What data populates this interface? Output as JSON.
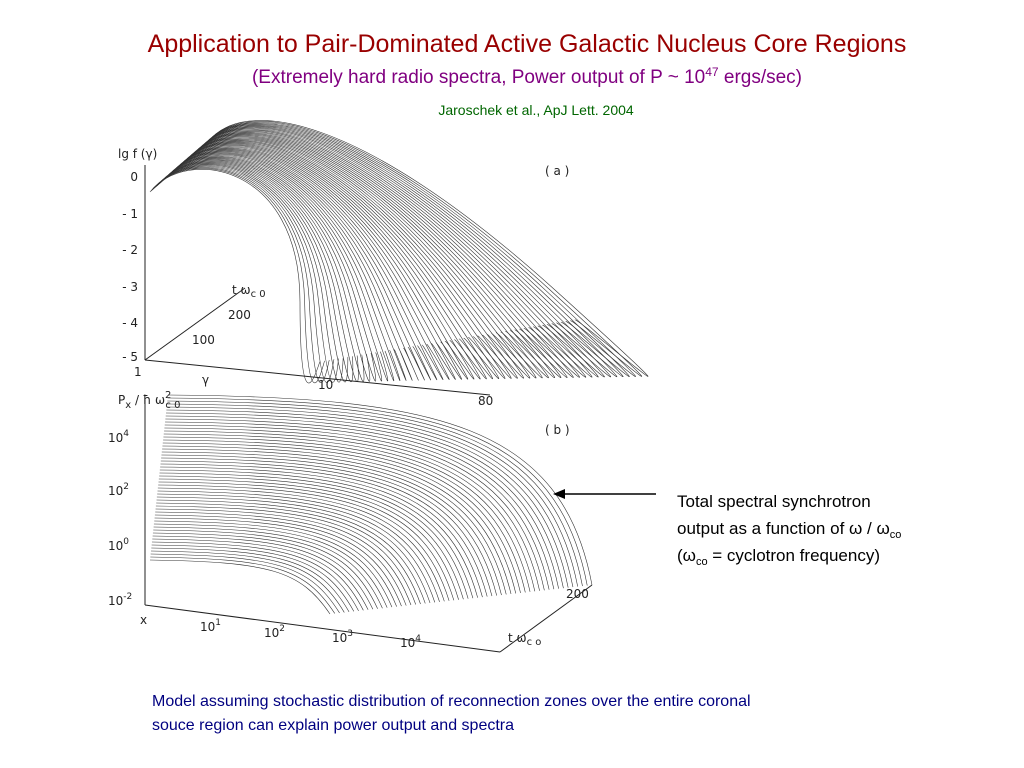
{
  "title": "Application to Pair-Dominated Active Galactic Nucleus Core Regions",
  "subtitle": {
    "text": "(Extremely hard radio spectra, Power output of P ~ 10",
    "exponent": "47",
    "tail": " ergs/sec)"
  },
  "citation": "Jaroschek et al., ApJ Lett. 2004",
  "panel_a": {
    "label": "( a )",
    "y_label": "lg f (γ)",
    "y_ticks": [
      "0",
      "- 1",
      "- 2",
      "- 3",
      "- 4",
      "- 5"
    ],
    "x_label": "γ",
    "x_ticks": [
      "1",
      "10",
      "80"
    ],
    "depth_label": {
      "text": "t ω",
      "sub": "c 0"
    },
    "depth_ticks": [
      "100",
      "200"
    ]
  },
  "panel_b": {
    "label": "( b )",
    "y_label": {
      "p": "P",
      "p_sub": "x",
      "rest": " / ħ ω",
      "sup": "2",
      "sub": "c 0"
    },
    "y_ticks": [
      {
        "base": "10",
        "exp": "4"
      },
      {
        "base": "10",
        "exp": "2"
      },
      {
        "base": "10",
        "exp": "0"
      },
      {
        "base": "10",
        "exp": "-2"
      }
    ],
    "x_label": "x",
    "x_ticks": [
      {
        "base": "10",
        "exp": "1"
      },
      {
        "base": "10",
        "exp": "2"
      },
      {
        "base": "10",
        "exp": "3"
      },
      {
        "base": "10",
        "exp": "4"
      }
    ],
    "depth_label": {
      "text": "t ω",
      "sub": "c o"
    },
    "depth_ticks": [
      "200"
    ]
  },
  "annotation": {
    "line1": "Total spectral synchrotron",
    "line2": "output as a function of ω / ω",
    "line2_sub": "co",
    "line3_open": "(ω",
    "line3_sub": "co",
    "line3_rest": " = cyclotron frequency)"
  },
  "footer": {
    "line1": "Model assuming stochastic distribution of reconnection zones over the entire coronal",
    "line2": "souce region can explain power output and spectra"
  }
}
